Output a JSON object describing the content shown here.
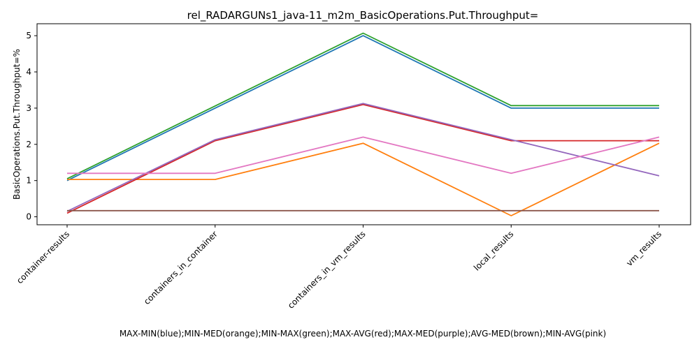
{
  "chart_data": {
    "type": "line",
    "title": "rel_RADARGUNs1_java-11_m2m_BasicOperations.Put.Throughput=",
    "ylabel": "BasicOperations.Put.Throughput=%",
    "xlabel": "MAX-MIN(blue);MIN-MED(orange);MIN-MAX(green);MAX-AVG(red);MAX-MED(purple);AVG-MED(brown);MIN-AVG(pink)",
    "categories": [
      "container-results",
      "containers_in_container",
      "containers_in_vm_results",
      "local_results",
      "vm_results"
    ],
    "ylim": [
      -0.22,
      5.33
    ],
    "yticks": [
      0,
      1,
      2,
      3,
      4,
      5
    ],
    "grid": false,
    "series": [
      {
        "color": "#1f77b4",
        "values": [
          1.0,
          3.0,
          5.0,
          3.0,
          3.0
        ]
      },
      {
        "color": "#ff7f0e",
        "values": [
          1.03,
          1.03,
          2.03,
          0.03,
          2.03
        ]
      },
      {
        "color": "#2ca02c",
        "values": [
          1.05,
          3.06,
          5.07,
          3.07,
          3.07
        ]
      },
      {
        "color": "#d62728",
        "values": [
          0.1,
          2.1,
          3.1,
          2.1,
          2.1
        ]
      },
      {
        "color": "#9467bd",
        "values": [
          0.15,
          2.13,
          3.13,
          2.13,
          1.13
        ]
      },
      {
        "color": "#8c564b",
        "values": [
          0.17,
          0.17,
          0.17,
          0.17,
          0.17
        ]
      },
      {
        "color": "#e377c2",
        "values": [
          1.2,
          1.2,
          2.2,
          1.2,
          2.2
        ]
      }
    ]
  }
}
